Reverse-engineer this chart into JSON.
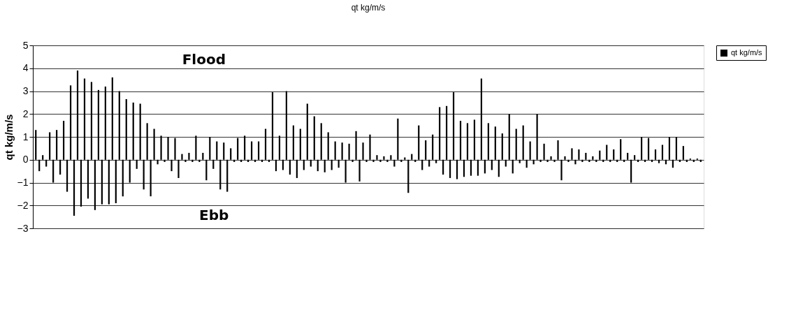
{
  "chart_data": {
    "type": "bar",
    "title": "qt kg/m/s",
    "ylabel": "qt kg/m/s",
    "annotations": [
      "Flood",
      "Ebb"
    ],
    "categories": [
      null,
      null,
      null,
      null,
      null,
      null,
      null,
      null,
      null,
      null,
      null,
      null,
      null,
      null,
      null,
      null,
      null,
      null,
      null,
      null,
      null,
      null,
      null,
      null,
      null,
      null,
      null,
      null,
      null,
      null,
      null,
      null,
      null,
      null,
      null,
      null,
      null,
      null,
      null,
      null,
      null,
      null,
      null,
      null,
      null,
      null,
      null,
      null,
      null,
      null,
      null,
      null,
      null,
      null,
      null,
      null,
      null,
      null,
      null,
      null,
      null,
      null,
      null,
      null,
      null,
      null,
      null,
      null,
      null,
      null,
      null,
      null,
      null,
      null,
      null,
      null,
      null,
      null,
      null,
      null,
      null,
      null,
      null,
      null,
      null,
      null,
      null,
      null,
      null,
      null,
      null,
      null,
      null,
      null,
      null,
      null,
      null,
      null,
      null,
      null,
      null,
      null,
      null,
      null,
      null,
      null,
      null,
      null,
      null,
      null,
      null,
      null,
      null,
      null,
      null,
      null,
      null,
      null,
      null,
      null,
      null,
      null,
      null,
      null,
      null,
      null,
      null,
      null,
      null,
      null,
      null,
      null,
      null,
      null,
      null,
      null,
      null,
      null,
      null,
      null,
      null,
      null,
      null,
      null,
      null,
      null,
      null,
      null,
      null,
      null,
      null,
      null,
      null,
      null,
      null,
      null,
      null,
      null,
      null,
      null,
      null,
      null,
      null,
      null,
      null,
      null,
      null,
      null,
      null,
      null,
      null,
      null,
      null,
      null,
      null,
      null,
      null,
      null,
      null,
      null,
      null,
      null,
      null,
      null,
      null,
      null,
      null,
      null,
      null,
      null,
      null,
      null
    ],
    "series": [
      {
        "name": "qt kg/m/s",
        "color": "#000000",
        "values": [
          1.3,
          -0.5,
          0.2,
          -0.3,
          1.2,
          -1.0,
          1.3,
          -0.65,
          1.7,
          -1.4,
          3.25,
          -2.45,
          3.9,
          -2.05,
          3.55,
          -1.7,
          3.4,
          -2.2,
          3.05,
          -1.95,
          3.2,
          -1.95,
          3.6,
          -1.9,
          3.0,
          -1.6,
          2.65,
          -1.0,
          2.5,
          -0.4,
          2.45,
          -1.3,
          1.6,
          -1.6,
          1.35,
          -0.2,
          1.05,
          -0.1,
          1.0,
          -0.5,
          0.95,
          -0.8,
          0.25,
          -0.1,
          0.3,
          -0.1,
          1.05,
          -0.1,
          0.3,
          -0.9,
          1.0,
          -0.4,
          0.8,
          -1.3,
          0.75,
          -1.4,
          0.5,
          -0.1,
          0.95,
          -0.1,
          1.05,
          -0.1,
          0.8,
          -0.1,
          0.8,
          -0.1,
          1.35,
          -0.1,
          2.95,
          -0.5,
          1.05,
          -0.45,
          3.0,
          -0.65,
          1.5,
          -0.8,
          1.35,
          -0.45,
          2.45,
          -0.3,
          1.9,
          -0.5,
          1.6,
          -0.55,
          1.2,
          -0.45,
          0.8,
          -0.35,
          0.75,
          -1.0,
          0.7,
          -0.1,
          1.25,
          -0.95,
          0.75,
          -0.1,
          1.1,
          -0.1,
          0.2,
          -0.1,
          0.15,
          -0.1,
          0.2,
          -0.3,
          1.8,
          -0.1,
          0.1,
          -1.45,
          0.25,
          -0.1,
          1.5,
          -0.45,
          0.85,
          -0.3,
          1.1,
          -0.15,
          2.3,
          -0.65,
          2.35,
          -0.8,
          2.95,
          -0.85,
          1.7,
          -0.75,
          1.6,
          -0.7,
          1.75,
          -0.7,
          3.55,
          -0.6,
          1.6,
          -0.45,
          1.45,
          -0.75,
          1.15,
          -0.3,
          2.0,
          -0.6,
          1.35,
          -0.15,
          1.5,
          -0.35,
          0.8,
          -0.2,
          2.0,
          -0.1,
          0.7,
          -0.1,
          0.15,
          -0.1,
          0.85,
          -0.9,
          0.15,
          -0.1,
          0.5,
          -0.2,
          0.45,
          -0.1,
          0.3,
          -0.1,
          0.15,
          -0.1,
          0.4,
          -0.1,
          0.65,
          -0.1,
          0.45,
          -0.1,
          0.9,
          -0.1,
          0.3,
          -1.0,
          0.2,
          -0.1,
          1.0,
          -0.1,
          0.95,
          -0.1,
          0.45,
          -0.15,
          0.65,
          -0.2,
          1.0,
          -0.35,
          1.0,
          -0.1,
          0.6,
          -0.1,
          0.05,
          -0.1,
          0.05,
          -0.1
        ]
      }
    ],
    "ylim": [
      -3,
      5
    ],
    "yticks": [
      -3,
      -2,
      -1,
      0,
      1,
      2,
      3,
      4,
      5
    ],
    "grid": "y",
    "legend": "right",
    "tick_labels": "y"
  }
}
